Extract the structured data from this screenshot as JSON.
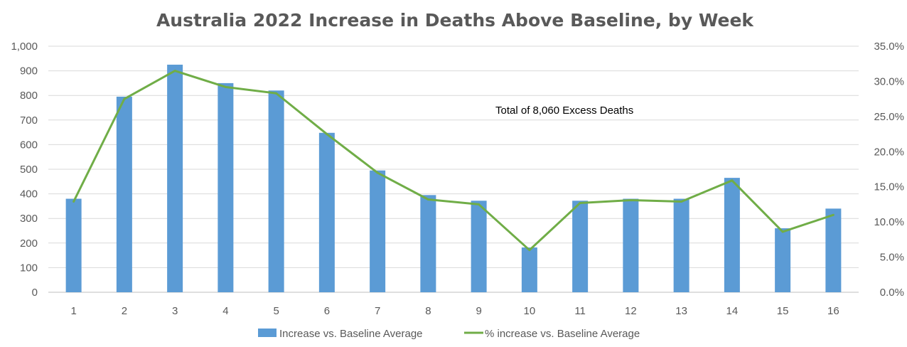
{
  "chart_data": {
    "type": "bar",
    "title": "Australia 2022 Increase in Deaths Above Baseline, by Week",
    "xlabel": "",
    "ylabel": "",
    "categories": [
      "1",
      "2",
      "3",
      "4",
      "5",
      "6",
      "7",
      "8",
      "9",
      "10",
      "11",
      "12",
      "13",
      "14",
      "15",
      "16"
    ],
    "series": [
      {
        "name": "Increase vs. Baseline Average",
        "type": "bar",
        "axis": "left",
        "color": "#5b9bd5",
        "values": [
          380,
          795,
          925,
          850,
          820,
          648,
          495,
          395,
          372,
          182,
          372,
          380,
          380,
          465,
          260,
          340
        ]
      },
      {
        "name": "% increase vs. Baseline Average",
        "type": "line",
        "axis": "right",
        "color": "#70ad47",
        "values": [
          12.9,
          27.5,
          31.5,
          29.2,
          28.3,
          22.5,
          17.0,
          13.2,
          12.5,
          6.0,
          12.7,
          13.1,
          12.9,
          15.9,
          8.6,
          11.0
        ]
      }
    ],
    "ylim": [
      0,
      1000
    ],
    "y_ticks": [
      "0",
      "100",
      "200",
      "300",
      "400",
      "500",
      "600",
      "700",
      "800",
      "900",
      "1,000"
    ],
    "y2lim": [
      0,
      35
    ],
    "y2_ticks": [
      "0.0%",
      "5.0%",
      "10.0%",
      "15.0%",
      "20.0%",
      "25.0%",
      "30.0%",
      "35.0%"
    ],
    "annotation": "Total of 8,060 Excess Deaths",
    "grid": true,
    "legend_position": "bottom"
  }
}
